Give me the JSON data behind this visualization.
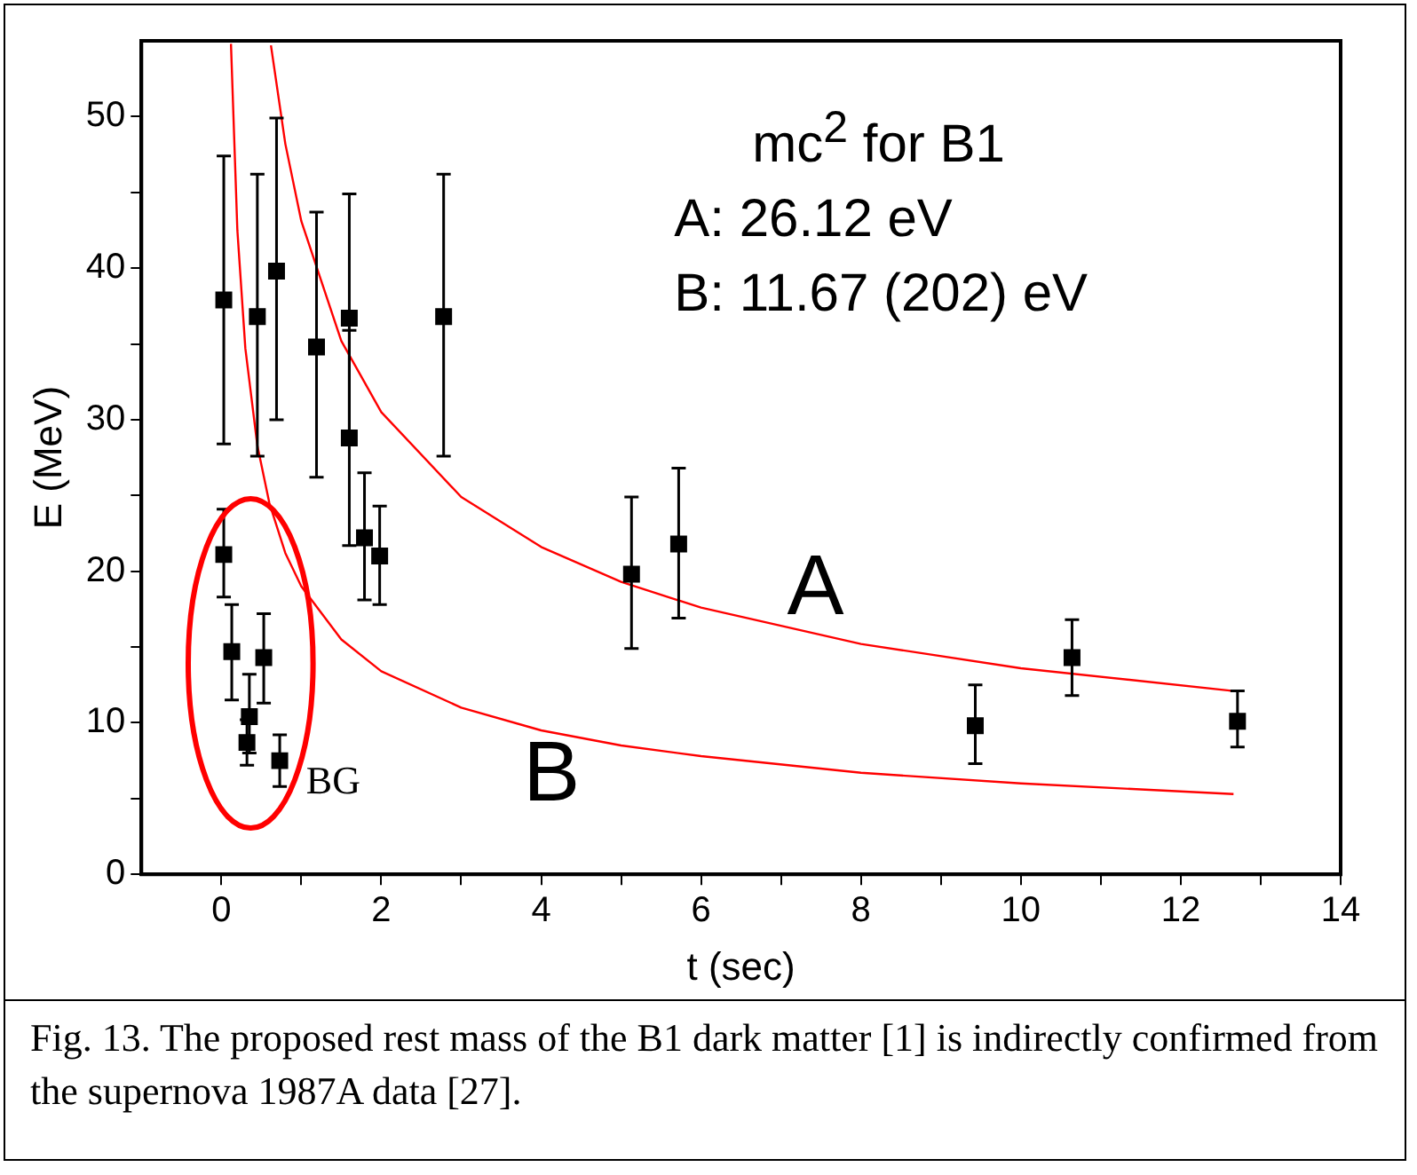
{
  "chart_data": {
    "type": "scatter",
    "xlabel": "t (sec)",
    "ylabel": "E (MeV)",
    "xlim": [
      -1,
      14
    ],
    "xticks": [
      0,
      {
        "value": 1,
        "label": null
      },
      2,
      {
        "value": 3,
        "label": null
      },
      4,
      {
        "value": 5,
        "label": null
      },
      6,
      {
        "value": 7,
        "label": null
      },
      8,
      {
        "value": 9,
        "label": null
      },
      10,
      {
        "value": 11,
        "label": null
      },
      12,
      {
        "value": 13,
        "label": null
      },
      14
    ],
    "ylim": [
      0,
      55
    ],
    "yticks": [
      0,
      {
        "value": 5,
        "label": null
      },
      10,
      {
        "value": 15,
        "label": null
      },
      20,
      {
        "value": 25,
        "label": null
      },
      30,
      {
        "value": 35,
        "label": null
      },
      40,
      {
        "value": 45,
        "label": null
      },
      50
    ],
    "grid": false,
    "legend": false,
    "series": [
      {
        "type": "scatter",
        "color": "#000000",
        "marker": "square",
        "x": [
          0.03,
          0.45,
          0.69,
          1.19,
          1.6,
          1.6,
          1.79,
          1.98,
          2.78,
          0.03,
          0.13,
          0.53,
          0.35,
          0.32,
          0.73,
          5.13,
          5.72,
          9.43,
          10.64,
          12.71
        ],
        "values": [
          37.9,
          36.8,
          39.8,
          34.8,
          36.7,
          28.8,
          22.2,
          21.0,
          36.8,
          21.1,
          14.7,
          14.3,
          10.4,
          8.7,
          7.5,
          19.8,
          21.8,
          9.8,
          14.3,
          10.1
        ],
        "errors": [
          [
            28.4,
            47.4
          ],
          [
            27.6,
            46.2
          ],
          [
            30.0,
            49.9
          ],
          [
            26.2,
            43.7
          ],
          [
            28.5,
            44.9
          ],
          [
            21.7,
            35.9
          ],
          [
            18.1,
            26.5
          ],
          [
            17.8,
            24.3
          ],
          [
            27.6,
            46.2
          ],
          [
            18.3,
            24.1
          ],
          [
            11.5,
            17.8
          ],
          [
            11.3,
            17.2
          ],
          [
            8.0,
            13.2
          ],
          [
            7.2,
            10.2
          ],
          [
            5.8,
            9.2
          ],
          [
            14.9,
            24.9
          ],
          [
            16.9,
            26.8
          ],
          [
            7.3,
            12.5
          ],
          [
            11.8,
            16.8
          ],
          [
            8.4,
            12.1
          ]
        ]
      },
      {
        "type": "line",
        "color": "#ff0000",
        "marker": "none",
        "x": [
          0.62,
          0.8,
          1,
          1.5,
          2,
          3,
          4,
          5,
          6,
          8,
          10,
          12.66
        ],
        "values": [
          54.7,
          48.2,
          43.1,
          35.2,
          30.5,
          24.9,
          21.6,
          19.3,
          17.6,
          15.2,
          13.6,
          12.1
        ]
      },
      {
        "type": "line",
        "color": "#ff0000",
        "marker": "none",
        "x": [
          0.12,
          0.2,
          0.3,
          0.45,
          0.6,
          0.8,
          1,
          1.5,
          2,
          3,
          4,
          5,
          6,
          8,
          10,
          12.66
        ],
        "values": [
          54.8,
          42.5,
          34.7,
          28.3,
          24.5,
          21.2,
          19.0,
          15.5,
          13.4,
          11.0,
          9.5,
          8.5,
          7.8,
          6.7,
          6.0,
          5.3
        ]
      }
    ],
    "annotations": [
      "mc$^{2}$ for B1",
      "A: 26.12 eV",
      "B: 11.67 (202) eV",
      "A",
      "B",
      "BG",
      "Fig. 13. The proposed rest mass of the B1 dark matter [1] is indirectly confirmed from the supernova 1987A data [27]."
    ]
  }
}
